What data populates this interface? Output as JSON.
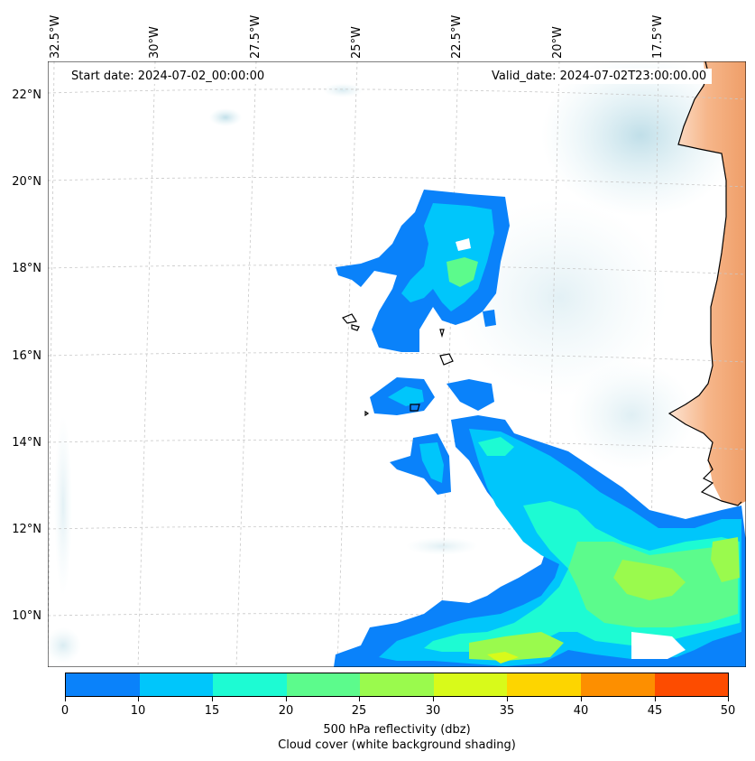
{
  "map": {
    "start_date": "Start date: 2024-07-02_00:00:00",
    "valid_date": "Valid_date: 2024-07-02T23:00:00.00",
    "lon_labels": [
      "32.5°W",
      "30°W",
      "27.5°W",
      "25°W",
      "22.5°W",
      "20°W",
      "17.5°W"
    ],
    "lat_labels": [
      "22°N",
      "20°N",
      "18°N",
      "16°N",
      "14°N",
      "12°N",
      "10°N"
    ],
    "colors": {
      "land": "#f2a877",
      "cloud": "#c9e4ec",
      "coastline": "#000000",
      "gridline": "#c8c8c8"
    }
  },
  "colorbar": {
    "ticks": [
      "0",
      "5",
      "10",
      "15",
      "20",
      "25",
      "30",
      "35",
      "40",
      "45",
      "50"
    ],
    "colors": [
      "#0a82fa",
      "#00c6fb",
      "#1dfbd3",
      "#5cfb8c",
      "#9afa4d",
      "#d8fa1a",
      "#fdd500",
      "#fd8f00",
      "#fd4c00",
      "#fd4c00"
    ],
    "label_line1": "500 hPa reflectivity (dbz)",
    "label_line2": "Cloud cover (white background shading)"
  }
}
